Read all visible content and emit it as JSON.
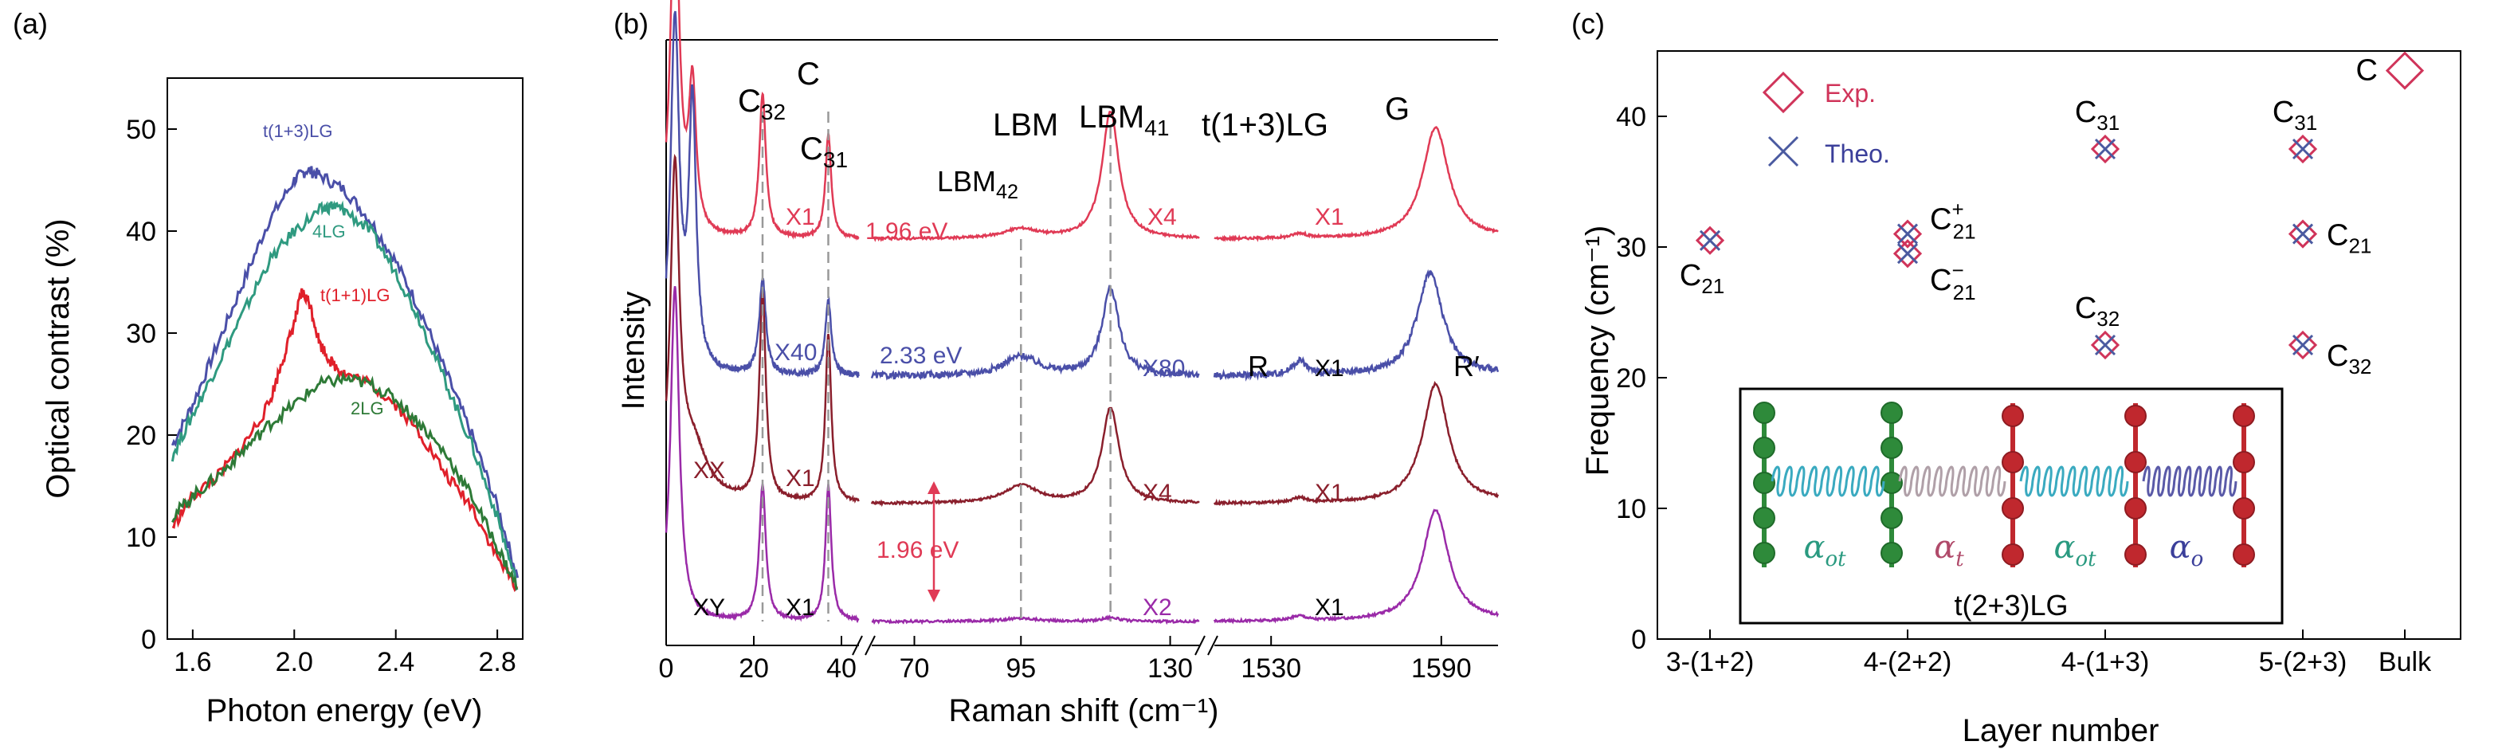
{
  "chart_data": [
    {
      "type": "line",
      "panel": "(a)",
      "xlabel": "Photon energy (eV)",
      "ylabel": "Optical contrast (%)",
      "xlim": [
        1.5,
        2.9
      ],
      "ylim": [
        0,
        55
      ],
      "xticks": [
        "1.6",
        "2.0",
        "2.4",
        "2.8"
      ],
      "xtick_values": [
        1.6,
        2.0,
        2.4,
        2.8
      ],
      "yticks": [
        "0",
        "10",
        "20",
        "30",
        "40",
        "50"
      ],
      "ytick_values": [
        0,
        10,
        20,
        30,
        40,
        50
      ],
      "series": [
        {
          "name": "t(1+3)LG",
          "color": "#4a4fa8",
          "x": [
            1.52,
            1.6,
            1.7,
            1.8,
            1.9,
            2.0,
            2.05,
            2.1,
            2.2,
            2.3,
            2.4,
            2.5,
            2.6,
            2.7,
            2.8,
            2.88
          ],
          "y": [
            19,
            23,
            29,
            35,
            41,
            45,
            46,
            45.5,
            44,
            41,
            37,
            32,
            26,
            20,
            13,
            6
          ]
        },
        {
          "name": "4LG",
          "color": "#2f9a80",
          "x": [
            1.52,
            1.6,
            1.7,
            1.8,
            1.9,
            2.0,
            2.1,
            2.15,
            2.2,
            2.3,
            2.4,
            2.5,
            2.6,
            2.7,
            2.8,
            2.88
          ],
          "y": [
            18,
            22,
            27,
            32,
            37,
            40,
            42,
            42.5,
            42,
            40,
            36,
            31,
            25,
            19,
            12,
            5
          ]
        },
        {
          "name": "t(1+1)LG",
          "color": "#e0202a",
          "x": [
            1.52,
            1.6,
            1.7,
            1.8,
            1.9,
            1.95,
            2.0,
            2.03,
            2.06,
            2.1,
            2.15,
            2.2,
            2.3,
            2.4,
            2.5,
            2.6,
            2.7,
            2.8,
            2.88
          ],
          "y": [
            11,
            14,
            16,
            19,
            23,
            27,
            31,
            34,
            33,
            29,
            27,
            26,
            25,
            23,
            20,
            16,
            13,
            8,
            5
          ]
        },
        {
          "name": "2LG",
          "color": "#2e7a37",
          "x": [
            1.52,
            1.6,
            1.7,
            1.8,
            1.9,
            2.0,
            2.1,
            2.2,
            2.3,
            2.4,
            2.5,
            2.6,
            2.7,
            2.8,
            2.88
          ],
          "y": [
            12,
            14,
            16,
            18.5,
            21,
            23,
            25,
            25.5,
            25,
            23.5,
            21,
            18,
            14,
            9,
            5
          ]
        }
      ],
      "annotations": [
        "(a)",
        "t(1+3)LG",
        "4LG",
        "t(1+1)LG",
        "2LG"
      ]
    },
    {
      "type": "line",
      "panel": "(b)",
      "title": "t(1+3)LG",
      "xlabel": "Raman shift (cm⁻¹)",
      "ylabel": "Intensity",
      "x_segments": [
        {
          "range": [
            0,
            44
          ],
          "ticks": [
            0,
            20,
            40
          ]
        },
        {
          "range": [
            60,
            137
          ],
          "ticks": [
            70,
            95,
            130
          ]
        },
        {
          "range": [
            1510,
            1610
          ],
          "ticks": [
            1530,
            1590
          ]
        }
      ],
      "peaks": [
        {
          "label": "C32",
          "x": 22
        },
        {
          "label": "C31",
          "x": 37
        },
        {
          "label": "LBM42",
          "x": 95
        },
        {
          "label": "LBM41",
          "x": 116
        },
        {
          "label": "G",
          "x": 1587
        },
        {
          "label": "R",
          "x": 1540
        },
        {
          "label": "R′",
          "x": 1622
        }
      ],
      "spectra": [
        {
          "name": "1.96 eV",
          "color": "#e03a55",
          "multipliers": [
            "X1",
            "X4",
            "X1"
          ]
        },
        {
          "name": "2.33 eV",
          "color": "#4a4fa8",
          "multipliers": [
            "X40",
            "X80",
            "X1"
          ]
        },
        {
          "name": "XX",
          "color": "#8a1f2c",
          "multipliers": [
            "X1",
            "X4",
            "X1"
          ]
        },
        {
          "name": "XY",
          "color": "#9a2aa8",
          "multipliers": [
            "X1",
            "X2",
            "X1"
          ]
        }
      ],
      "annotations": [
        "(b)",
        "C",
        "LBM",
        "1.96 eV"
      ]
    },
    {
      "type": "scatter",
      "panel": "(c)",
      "xlabel": "Layer number",
      "ylabel": "Frequency (cm⁻¹)",
      "categories": [
        "3-(1+2)",
        "4-(2+2)",
        "4-(1+3)",
        "5-(2+3)",
        "Bulk"
      ],
      "ylim": [
        0,
        45
      ],
      "yticks": [
        "0",
        "10",
        "20",
        "30",
        "40"
      ],
      "ytick_values": [
        0,
        10,
        20,
        30,
        40
      ],
      "series": [
        {
          "name": "Exp.",
          "color": "#d0345a",
          "marker": "diamond",
          "points": [
            {
              "category": "3-(1+2)",
              "y": 30.5,
              "label": "C21"
            },
            {
              "category": "4-(2+2)",
              "y": 31,
              "label": "C21+"
            },
            {
              "category": "4-(2+2)",
              "y": 29.5,
              "label": "C21−"
            },
            {
              "category": "4-(1+3)",
              "y": 37.5,
              "label": "C31"
            },
            {
              "category": "4-(1+3)",
              "y": 22.5,
              "label": "C32"
            },
            {
              "category": "5-(2+3)",
              "y": 37.5,
              "label": "C31"
            },
            {
              "category": "5-(2+3)",
              "y": 31,
              "label": "C21"
            },
            {
              "category": "5-(2+3)",
              "y": 22.5,
              "label": "C32"
            },
            {
              "category": "Bulk",
              "y": 43.5,
              "label": "C"
            }
          ]
        },
        {
          "name": "Theo.",
          "color": "#4a5aa0",
          "marker": "cross",
          "points": [
            {
              "category": "3-(1+2)",
              "y": 30.5
            },
            {
              "category": "4-(2+2)",
              "y": 31
            },
            {
              "category": "4-(2+2)",
              "y": 29.5
            },
            {
              "category": "4-(1+3)",
              "y": 37.5
            },
            {
              "category": "4-(1+3)",
              "y": 22.5
            },
            {
              "category": "5-(2+3)",
              "y": 37.5
            },
            {
              "category": "5-(2+3)",
              "y": 31
            },
            {
              "category": "5-(2+3)",
              "y": 22.5
            }
          ]
        }
      ],
      "inset": {
        "title": "t(2+3)LG",
        "labels": [
          "α_ot",
          "α_t",
          "α_ot",
          "α_o"
        ]
      },
      "annotations": [
        "(c)"
      ]
    }
  ]
}
